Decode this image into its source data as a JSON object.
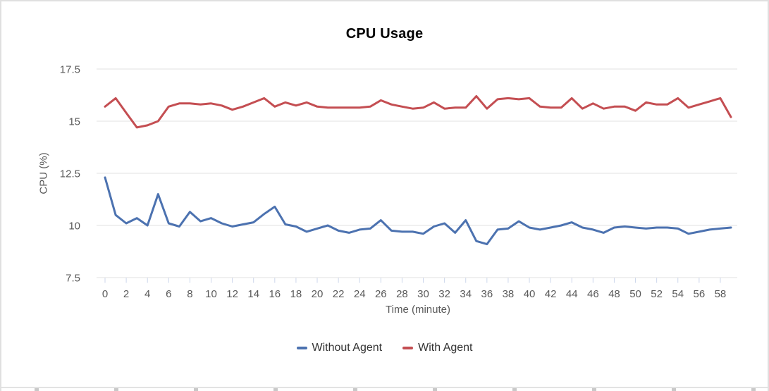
{
  "chart_data": {
    "type": "line",
    "title": "CPU Usage",
    "xlabel": "Time (minute)",
    "ylabel": "CPU (%)",
    "ylim": [
      7.5,
      17.5
    ],
    "y_ticks": [
      17.5,
      15,
      12.5,
      10,
      7.5
    ],
    "x_range": [
      0,
      59
    ],
    "x_ticks": [
      0,
      2,
      4,
      6,
      8,
      10,
      12,
      14,
      16,
      18,
      20,
      22,
      24,
      26,
      28,
      30,
      32,
      34,
      36,
      38,
      40,
      42,
      44,
      46,
      48,
      50,
      52,
      54,
      56,
      58
    ],
    "grid": "horizontal-only",
    "legend_position": "bottom-center",
    "x": [
      0,
      1,
      2,
      3,
      4,
      5,
      6,
      7,
      8,
      9,
      10,
      11,
      12,
      13,
      14,
      15,
      16,
      17,
      18,
      19,
      20,
      21,
      22,
      23,
      24,
      25,
      26,
      27,
      28,
      29,
      30,
      31,
      32,
      33,
      34,
      35,
      36,
      37,
      38,
      39,
      40,
      41,
      42,
      43,
      44,
      45,
      46,
      47,
      48,
      49,
      50,
      51,
      52,
      53,
      54,
      55,
      56,
      57,
      58,
      59
    ],
    "series": [
      {
        "name": "Without Agent",
        "color": "#4c72b0",
        "values": [
          12.3,
          10.5,
          10.1,
          10.35,
          10.0,
          11.5,
          10.1,
          9.95,
          10.65,
          10.2,
          10.35,
          10.1,
          9.95,
          10.05,
          10.15,
          10.55,
          10.9,
          10.05,
          9.95,
          9.7,
          9.85,
          10.0,
          9.75,
          9.65,
          9.8,
          9.85,
          10.25,
          9.75,
          9.7,
          9.7,
          9.6,
          9.95,
          10.1,
          9.65,
          10.25,
          9.25,
          9.1,
          9.8,
          9.85,
          10.2,
          9.9,
          9.8,
          9.9,
          10.0,
          10.15,
          9.9,
          9.8,
          9.65,
          9.9,
          9.95,
          9.9,
          9.85,
          9.9,
          9.9,
          9.85,
          9.6,
          9.7,
          9.8,
          9.85,
          9.9
        ]
      },
      {
        "name": "With Agent",
        "color": "#c44e52",
        "values": [
          15.7,
          16.1,
          15.4,
          14.7,
          14.8,
          15.0,
          15.7,
          15.85,
          15.85,
          15.8,
          15.85,
          15.75,
          15.55,
          15.7,
          15.9,
          16.1,
          15.7,
          15.9,
          15.75,
          15.9,
          15.7,
          15.65,
          15.65,
          15.65,
          15.65,
          15.7,
          16.0,
          15.8,
          15.7,
          15.6,
          15.65,
          15.9,
          15.6,
          15.65,
          15.65,
          16.2,
          15.6,
          16.05,
          16.1,
          16.05,
          16.1,
          15.7,
          15.65,
          15.65,
          16.1,
          15.6,
          15.85,
          15.6,
          15.7,
          15.7,
          15.5,
          15.9,
          15.8,
          15.8,
          16.1,
          15.65,
          15.8,
          15.95,
          16.1,
          15.2
        ]
      }
    ]
  },
  "colors": {
    "grid": "#e0e0e0",
    "tick": "#ccd6eb",
    "axis_label": "#595959",
    "legend_text": "#333333",
    "title": "#000000",
    "card_border": "#e0e0e0"
  }
}
